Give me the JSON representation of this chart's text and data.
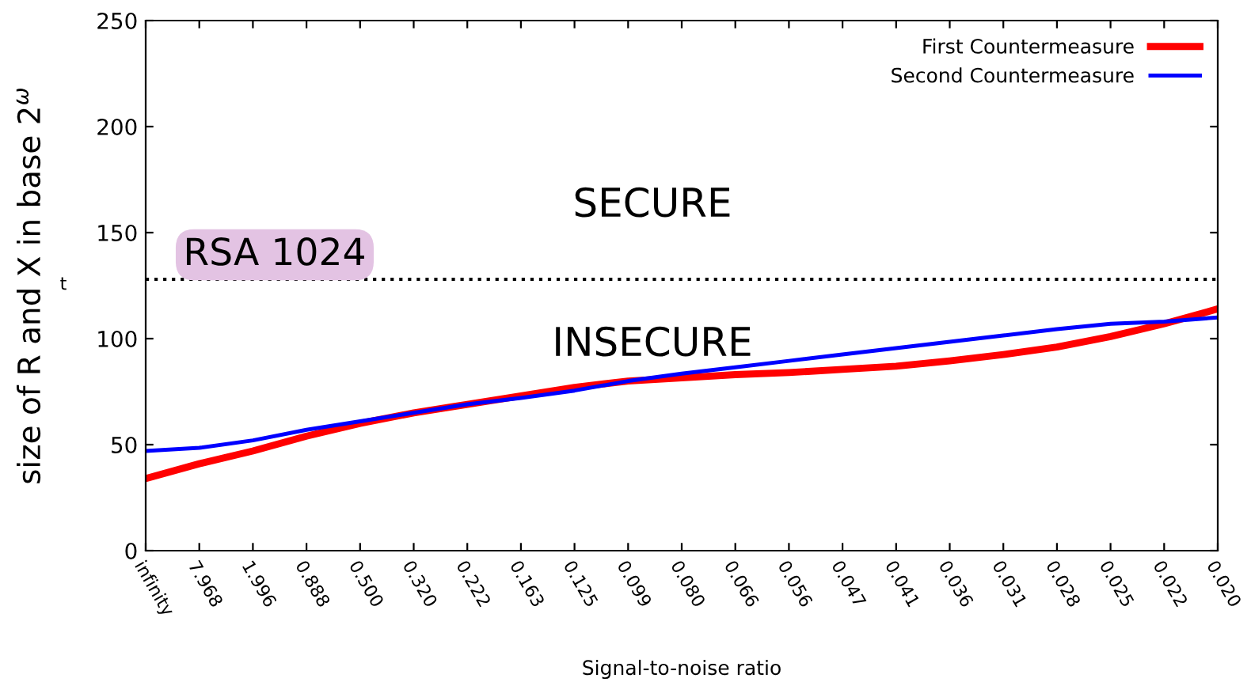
{
  "chart_data": {
    "type": "line",
    "xlabel": "Signal-to-noise ratio",
    "ylabel": "size of R and X in base 2$^{ω}$",
    "categories": [
      "infinity",
      "7.968",
      "1.996",
      "0.888",
      "0.500",
      "0.320",
      "0.222",
      "0.163",
      "0.125",
      "0.099",
      "0.080",
      "0.066",
      "0.056",
      "0.047",
      "0.041",
      "0.036",
      "0.031",
      "0.028",
      "0.025",
      "0.022",
      "0.020"
    ],
    "ylim": [
      0,
      250
    ],
    "yticks": [
      0,
      50,
      100,
      150,
      200,
      250
    ],
    "series": [
      {
        "name": "First Countermeasure",
        "color": "#ff0000",
        "values": [
          34,
          41,
          47,
          54,
          60,
          65,
          69,
          73,
          77,
          80,
          81.5,
          83,
          84,
          85.5,
          87,
          89.5,
          92.5,
          96,
          101,
          107,
          114
        ]
      },
      {
        "name": "Second Countermeasure",
        "color": "#0000ff",
        "values": [
          47,
          48.5,
          52,
          57,
          61,
          65,
          69,
          72,
          75.5,
          80,
          83.5,
          86.5,
          89.5,
          92.5,
          95.5,
          98.5,
          101.5,
          104.5,
          107,
          108,
          110
        ]
      }
    ],
    "ref_lines": [
      {
        "axis": "y",
        "value": 128,
        "label": "RSA 1024",
        "color": "#000000",
        "line_style": "dotted"
      }
    ],
    "annotations": [
      "SECURE",
      "INSECURE",
      "t"
    ],
    "legend": "top right",
    "grid": false,
    "marker": "none",
    "line_style": "solid"
  }
}
